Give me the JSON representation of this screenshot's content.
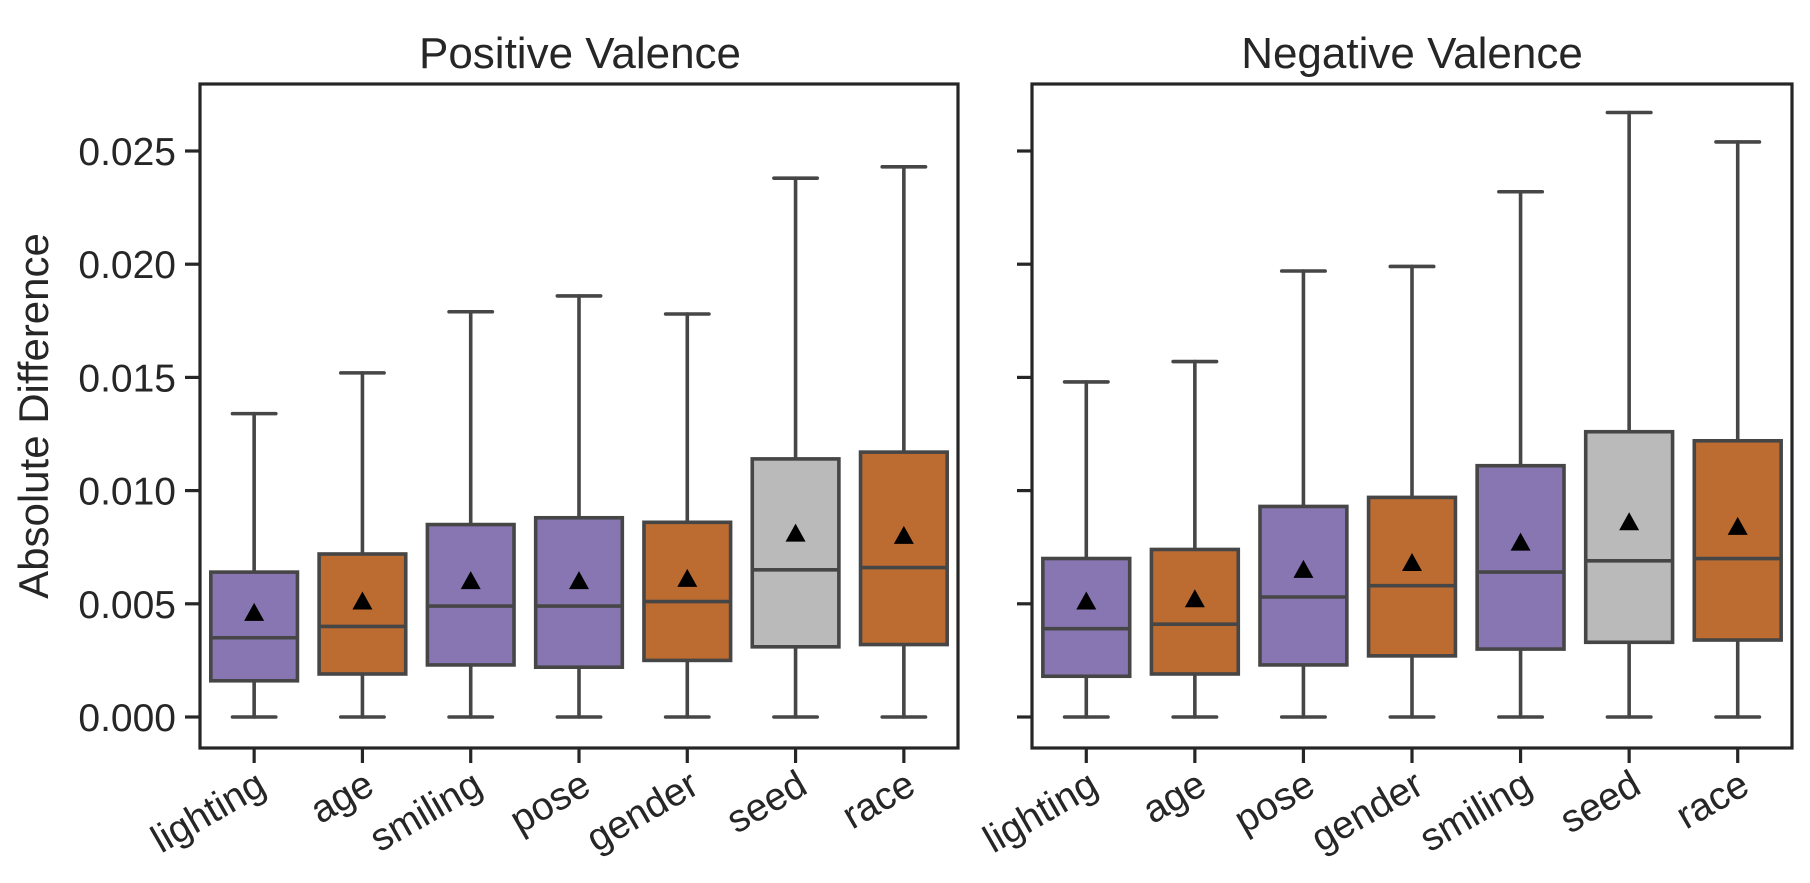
{
  "figure": {
    "ylabel": "Absolute Difference",
    "colors": {
      "purple": "#8876b2",
      "orange": "#bc6b31",
      "gray": "#bababa",
      "line": "#464646",
      "axis": "#262626",
      "mean_marker": "#000000"
    }
  },
  "chart_data": [
    {
      "type": "box",
      "title": "Positive Valence",
      "xlabel": "",
      "ylabel": "Absolute Difference",
      "ylim": [
        -0.0013,
        0.028
      ],
      "yticks": [
        0.0,
        0.005,
        0.01,
        0.015,
        0.02,
        0.025
      ],
      "ytick_labels": [
        "0.000",
        "0.005",
        "0.010",
        "0.015",
        "0.020",
        "0.025"
      ],
      "show_ytick_labels": true,
      "grid": false,
      "mean_marker": "triangle",
      "categories": [
        "lighting",
        "age",
        "smiling",
        "pose",
        "gender",
        "seed",
        "race"
      ],
      "boxes": [
        {
          "label": "lighting",
          "color": "purple",
          "whislo": 0.0,
          "q1": 0.0016,
          "med": 0.0035,
          "q3": 0.0064,
          "whishi": 0.0134,
          "mean": 0.0046
        },
        {
          "label": "age",
          "color": "orange",
          "whislo": 0.0,
          "q1": 0.0019,
          "med": 0.004,
          "q3": 0.0072,
          "whishi": 0.0152,
          "mean": 0.0051
        },
        {
          "label": "smiling",
          "color": "purple",
          "whislo": 0.0,
          "q1": 0.0023,
          "med": 0.0049,
          "q3": 0.0085,
          "whishi": 0.0179,
          "mean": 0.006
        },
        {
          "label": "pose",
          "color": "purple",
          "whislo": 0.0,
          "q1": 0.0022,
          "med": 0.0049,
          "q3": 0.0088,
          "whishi": 0.0186,
          "mean": 0.006
        },
        {
          "label": "gender",
          "color": "orange",
          "whislo": 0.0,
          "q1": 0.0025,
          "med": 0.0051,
          "q3": 0.0086,
          "whishi": 0.0178,
          "mean": 0.0061
        },
        {
          "label": "seed",
          "color": "gray",
          "whislo": 0.0,
          "q1": 0.0031,
          "med": 0.0065,
          "q3": 0.0114,
          "whishi": 0.0238,
          "mean": 0.0081
        },
        {
          "label": "race",
          "color": "orange",
          "whislo": 0.0,
          "q1": 0.0032,
          "med": 0.0066,
          "q3": 0.0117,
          "whishi": 0.0243,
          "mean": 0.008
        }
      ]
    },
    {
      "type": "box",
      "title": "Negative Valence",
      "xlabel": "",
      "ylabel": "",
      "ylim": [
        -0.0013,
        0.028
      ],
      "yticks": [
        0.0,
        0.005,
        0.01,
        0.015,
        0.02,
        0.025
      ],
      "ytick_labels": [],
      "show_ytick_labels": false,
      "grid": false,
      "mean_marker": "triangle",
      "categories": [
        "lighting",
        "age",
        "pose",
        "gender",
        "smiling",
        "seed",
        "race"
      ],
      "boxes": [
        {
          "label": "lighting",
          "color": "purple",
          "whislo": 0.0,
          "q1": 0.0018,
          "med": 0.0039,
          "q3": 0.007,
          "whishi": 0.0148,
          "mean": 0.0051
        },
        {
          "label": "age",
          "color": "orange",
          "whislo": 0.0,
          "q1": 0.0019,
          "med": 0.0041,
          "q3": 0.0074,
          "whishi": 0.0157,
          "mean": 0.0052
        },
        {
          "label": "pose",
          "color": "purple",
          "whislo": 0.0,
          "q1": 0.0023,
          "med": 0.0053,
          "q3": 0.0093,
          "whishi": 0.0197,
          "mean": 0.0065
        },
        {
          "label": "gender",
          "color": "orange",
          "whislo": 0.0,
          "q1": 0.0027,
          "med": 0.0058,
          "q3": 0.0097,
          "whishi": 0.0199,
          "mean": 0.0068
        },
        {
          "label": "smiling",
          "color": "purple",
          "whislo": 0.0,
          "q1": 0.003,
          "med": 0.0064,
          "q3": 0.0111,
          "whishi": 0.0232,
          "mean": 0.0077
        },
        {
          "label": "seed",
          "color": "gray",
          "whislo": 0.0,
          "q1": 0.0033,
          "med": 0.0069,
          "q3": 0.0126,
          "whishi": 0.0267,
          "mean": 0.0086
        },
        {
          "label": "race",
          "color": "orange",
          "whislo": 0.0,
          "q1": 0.0034,
          "med": 0.007,
          "q3": 0.0122,
          "whishi": 0.0254,
          "mean": 0.0084
        }
      ]
    }
  ]
}
